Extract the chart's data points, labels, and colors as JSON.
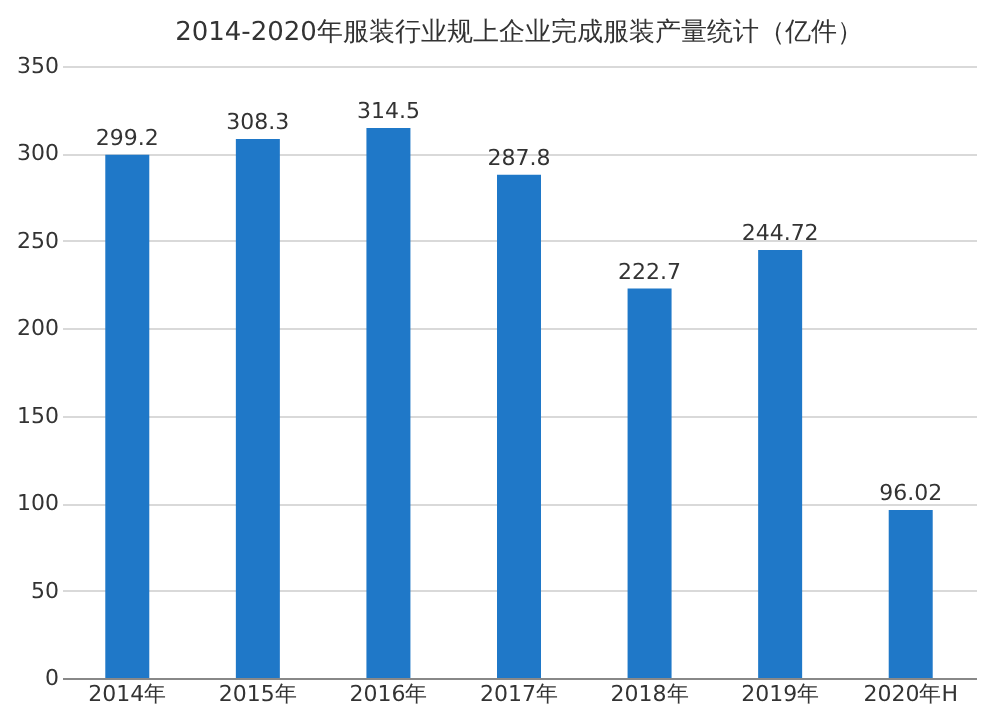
{
  "chart_data": {
    "type": "bar",
    "title": "2014-2020年服装行业规上企业完成服装产量统计（亿件）",
    "categories": [
      "2014年",
      "2015年",
      "2016年",
      "2017年",
      "2018年",
      "2019年",
      "2020年H"
    ],
    "values": [
      299.2,
      308.3,
      314.5,
      287.8,
      222.7,
      244.72,
      96.02
    ],
    "value_labels": [
      "299.2",
      "308.3",
      "314.5",
      "287.8",
      "222.7",
      "244.72",
      "96.02"
    ],
    "color": "#1f78c8",
    "ylim": [
      0,
      350
    ],
    "yticks": [
      0,
      50,
      100,
      150,
      200,
      250,
      300,
      350
    ],
    "grid": "y"
  }
}
